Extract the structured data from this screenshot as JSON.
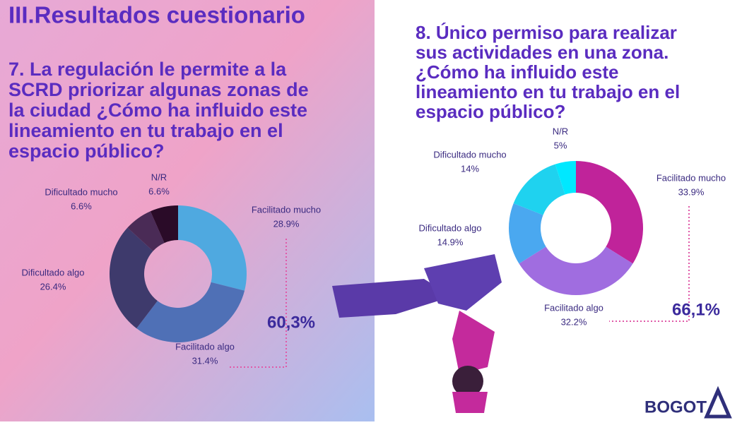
{
  "header": {
    "title": "III.Resultados cuestionario"
  },
  "logo": "BOGOT",
  "chart_data": [
    {
      "type": "donut",
      "title": [
        "7. La regulación le permite a la",
        "SCRD priorizar algunas zonas de",
        "la ciudad  ¿Cómo ha influido este",
        "lineamiento en tu trabajo en el",
        "espacio público?"
      ],
      "categories": [
        "Facilitado mucho",
        "Facilitado algo",
        "Dificultado algo",
        "Dificultado mucho",
        "N/R"
      ],
      "values": [
        28.9,
        31.4,
        26.4,
        6.6,
        6.6
      ],
      "value_labels": [
        "28.9%",
        "31.4%",
        "26.4%",
        "6.6%",
        "6.6%"
      ],
      "colors": [
        "#4fa9e0",
        "#4f70b6",
        "#3e3a6c",
        "#4a2b56",
        "#2a0b28"
      ],
      "annotations": [
        "60,3%"
      ]
    },
    {
      "type": "donut",
      "title": [
        "8.  Único permiso para realizar",
        "sus actividades en una zona.",
        "¿Cómo ha influido este",
        "lineamiento en tu trabajo en el",
        "espacio público?"
      ],
      "categories": [
        "Facilitado mucho",
        "Facilitado algo",
        "Dificultado algo",
        "Dificultado mucho",
        "N/R"
      ],
      "values": [
        33.9,
        32.2,
        14.9,
        14,
        5
      ],
      "value_labels": [
        "33.9%",
        "32.2%",
        "14.9%",
        "14%",
        "5%"
      ],
      "colors": [
        "#c0239a",
        "#a06de0",
        "#4aa8f0",
        "#1fd2ef",
        "#00e8ff"
      ],
      "annotations": [
        "66,1%"
      ]
    }
  ]
}
